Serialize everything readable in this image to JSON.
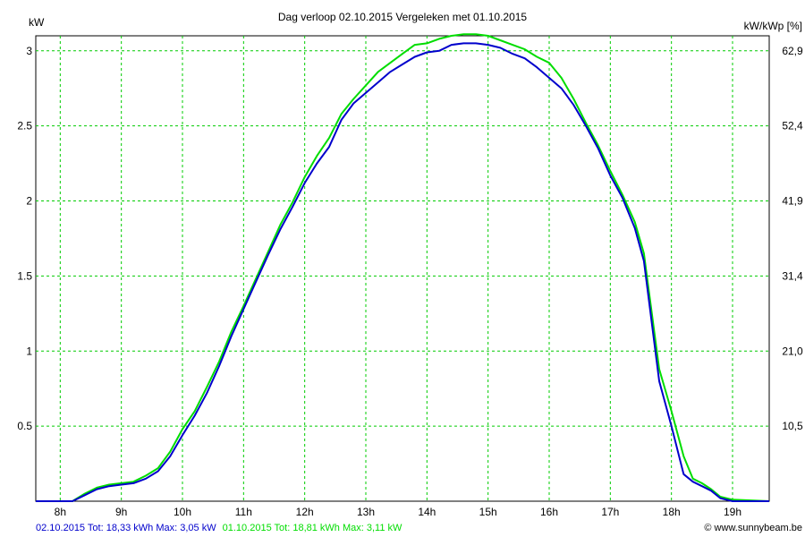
{
  "chart_data": {
    "type": "line",
    "title": "Dag  verloop 02.10.2015   Vergeleken met 01.10.2015",
    "ylabel_left": "kW",
    "ylabel_right": "kW/kWp [%]",
    "credit": "© www.sunnybeam.be",
    "x_range": [
      7.6,
      19.6
    ],
    "ylim": [
      0,
      3.1
    ],
    "grid": true,
    "x_ticks": [
      {
        "value": 8,
        "label": "8h"
      },
      {
        "value": 9,
        "label": "9h"
      },
      {
        "value": 10,
        "label": "10h"
      },
      {
        "value": 11,
        "label": "11h"
      },
      {
        "value": 12,
        "label": "12h"
      },
      {
        "value": 13,
        "label": "13h"
      },
      {
        "value": 14,
        "label": "14h"
      },
      {
        "value": 15,
        "label": "15h"
      },
      {
        "value": 16,
        "label": "16h"
      },
      {
        "value": 17,
        "label": "17h"
      },
      {
        "value": 18,
        "label": "18h"
      },
      {
        "value": 19,
        "label": "19h"
      }
    ],
    "y_ticks_left": [
      {
        "value": 0.5,
        "label": "0.5"
      },
      {
        "value": 1,
        "label": "1"
      },
      {
        "value": 1.5,
        "label": "1.5"
      },
      {
        "value": 2,
        "label": "2"
      },
      {
        "value": 2.5,
        "label": "2.5"
      },
      {
        "value": 3,
        "label": "3"
      }
    ],
    "y_ticks_right": [
      {
        "value": 0.5,
        "label": "10,5"
      },
      {
        "value": 1,
        "label": "21,0"
      },
      {
        "value": 1.5,
        "label": "31,4"
      },
      {
        "value": 2,
        "label": "41,9"
      },
      {
        "value": 2.5,
        "label": "52,4"
      },
      {
        "value": 3,
        "label": "62,9"
      }
    ],
    "series": [
      {
        "name": "02.10.2015",
        "legend": "02.10.2015 Tot: 18,33 kWh Max: 3,05 kW",
        "color": "#0000cc",
        "x": [
          7.6,
          8.2,
          8.4,
          8.6,
          8.8,
          9.0,
          9.2,
          9.4,
          9.6,
          9.8,
          10.0,
          10.2,
          10.4,
          10.6,
          10.8,
          11.0,
          11.2,
          11.4,
          11.6,
          11.8,
          12.0,
          12.2,
          12.4,
          12.6,
          12.8,
          13.0,
          13.2,
          13.4,
          13.6,
          13.8,
          14.0,
          14.2,
          14.4,
          14.6,
          14.8,
          15.0,
          15.2,
          15.4,
          15.6,
          15.8,
          16.0,
          16.2,
          16.4,
          16.6,
          16.8,
          17.0,
          17.2,
          17.4,
          17.55,
          17.8,
          18.0,
          18.2,
          18.35,
          18.5,
          18.65,
          18.8,
          19.0,
          19.6
        ],
        "y": [
          0,
          0,
          0.04,
          0.08,
          0.1,
          0.11,
          0.12,
          0.15,
          0.2,
          0.3,
          0.44,
          0.57,
          0.72,
          0.9,
          1.1,
          1.28,
          1.46,
          1.64,
          1.81,
          1.96,
          2.12,
          2.25,
          2.36,
          2.54,
          2.65,
          2.72,
          2.79,
          2.86,
          2.91,
          2.96,
          2.99,
          3.0,
          3.04,
          3.05,
          3.05,
          3.04,
          3.02,
          2.98,
          2.95,
          2.89,
          2.82,
          2.75,
          2.64,
          2.5,
          2.35,
          2.17,
          2.02,
          1.82,
          1.6,
          0.8,
          0.5,
          0.18,
          0.13,
          0.1,
          0.07,
          0.02,
          0,
          0
        ]
      },
      {
        "name": "01.10.2015",
        "legend": "01.10.2015 Tot: 18,81 kWh Max: 3,11 kW",
        "color": "#00dd00",
        "x": [
          7.6,
          8.2,
          8.4,
          8.6,
          8.8,
          9.0,
          9.2,
          9.4,
          9.6,
          9.8,
          10.0,
          10.2,
          10.4,
          10.6,
          10.8,
          11.0,
          11.2,
          11.4,
          11.6,
          11.8,
          12.0,
          12.2,
          12.4,
          12.6,
          12.8,
          13.0,
          13.2,
          13.4,
          13.6,
          13.8,
          14.0,
          14.2,
          14.4,
          14.6,
          14.8,
          15.0,
          15.2,
          15.4,
          15.6,
          15.8,
          16.0,
          16.2,
          16.4,
          16.6,
          16.8,
          17.0,
          17.2,
          17.4,
          17.55,
          17.8,
          18.0,
          18.2,
          18.35,
          18.5,
          18.65,
          18.8,
          19.0,
          19.6
        ],
        "y": [
          0,
          0,
          0.05,
          0.09,
          0.11,
          0.12,
          0.13,
          0.17,
          0.22,
          0.33,
          0.48,
          0.6,
          0.76,
          0.93,
          1.13,
          1.3,
          1.48,
          1.66,
          1.84,
          1.99,
          2.16,
          2.3,
          2.42,
          2.58,
          2.68,
          2.77,
          2.86,
          2.92,
          2.98,
          3.04,
          3.05,
          3.08,
          3.1,
          3.11,
          3.11,
          3.1,
          3.07,
          3.04,
          3.01,
          2.96,
          2.92,
          2.82,
          2.68,
          2.52,
          2.37,
          2.2,
          2.04,
          1.86,
          1.65,
          0.88,
          0.6,
          0.3,
          0.15,
          0.12,
          0.08,
          0.03,
          0.01,
          0
        ]
      }
    ]
  }
}
